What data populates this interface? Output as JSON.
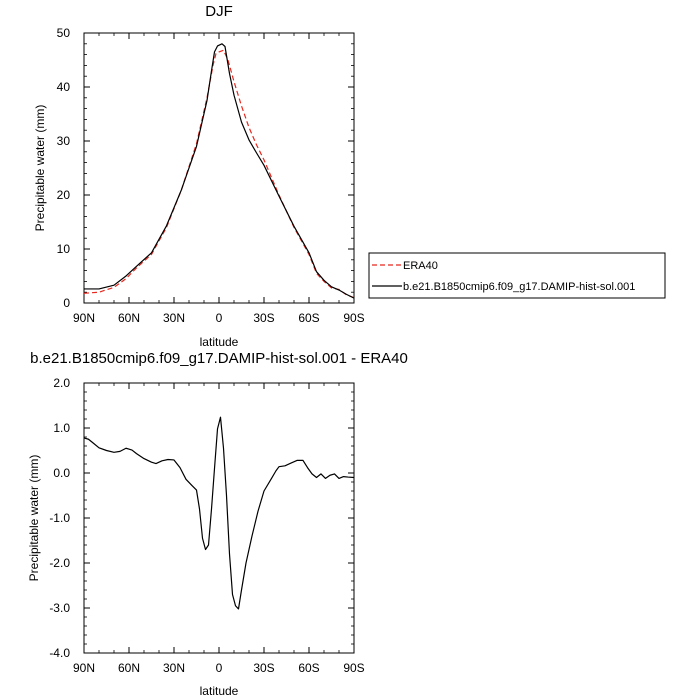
{
  "chart_data": [
    {
      "type": "line",
      "title": "DJF",
      "xlabel": "latitude",
      "ylabel": "Precipitable water (mm)",
      "x_ticks": [
        {
          "value": 90,
          "label": "90N"
        },
        {
          "value": 60,
          "label": "60N"
        },
        {
          "value": 30,
          "label": "30N"
        },
        {
          "value": 0,
          "label": "0"
        },
        {
          "value": -30,
          "label": "30S"
        },
        {
          "value": -60,
          "label": "60S"
        },
        {
          "value": -90,
          "label": "90S"
        }
      ],
      "y_ticks": [
        {
          "value": 0,
          "label": "0"
        },
        {
          "value": 10,
          "label": "10"
        },
        {
          "value": 20,
          "label": "20"
        },
        {
          "value": 30,
          "label": "30"
        },
        {
          "value": 40,
          "label": "40"
        },
        {
          "value": 50,
          "label": "50"
        }
      ],
      "xlim": [
        90,
        -90
      ],
      "ylim": [
        0,
        50
      ],
      "legend": "right",
      "series": [
        {
          "name": "ERA40",
          "color": "#e8281e",
          "dash": "dashed",
          "points": [
            [
              90,
              1.8
            ],
            [
              80,
              2.0
            ],
            [
              70,
              2.9
            ],
            [
              62,
              4.5
            ],
            [
              55,
              6.5
            ],
            [
              45,
              9.0
            ],
            [
              35,
              14.0
            ],
            [
              25,
              21.0
            ],
            [
              15,
              29.5
            ],
            [
              8,
              38.0
            ],
            [
              4,
              44.0
            ],
            [
              2,
              46.2
            ],
            [
              0,
              46.5
            ],
            [
              -3,
              46.8
            ],
            [
              -6,
              45.0
            ],
            [
              -10,
              41.0
            ],
            [
              -15,
              36.5
            ],
            [
              -20,
              32.5
            ],
            [
              -25,
              29.3
            ],
            [
              -30,
              26.5
            ],
            [
              -40,
              20.0
            ],
            [
              -50,
              14.0
            ],
            [
              -60,
              9.0
            ],
            [
              -65,
              5.5
            ],
            [
              -70,
              4.0
            ],
            [
              -75,
              2.8
            ],
            [
              -80,
              2.5
            ],
            [
              -85,
              1.5
            ],
            [
              -90,
              1.0
            ]
          ]
        },
        {
          "name": "b.e21.B1850cmip6.f09_g17.DAMIP-hist-sol.001",
          "color": "#000000",
          "dash": "solid",
          "points": [
            [
              90,
              2.6
            ],
            [
              80,
              2.6
            ],
            [
              70,
              3.3
            ],
            [
              62,
              5.0
            ],
            [
              55,
              6.8
            ],
            [
              45,
              9.3
            ],
            [
              35,
              14.3
            ],
            [
              25,
              21.0
            ],
            [
              15,
              29.0
            ],
            [
              8,
              37.5
            ],
            [
              5,
              43.0
            ],
            [
              3,
              46.5
            ],
            [
              1,
              47.6
            ],
            [
              -2,
              48.0
            ],
            [
              -4,
              47.5
            ],
            [
              -7,
              42.5
            ],
            [
              -10,
              38.5
            ],
            [
              -15,
              33.5
            ],
            [
              -20,
              30.2
            ],
            [
              -25,
              27.8
            ],
            [
              -30,
              25.5
            ],
            [
              -40,
              19.8
            ],
            [
              -50,
              14.2
            ],
            [
              -60,
              9.3
            ],
            [
              -65,
              5.8
            ],
            [
              -70,
              4.2
            ],
            [
              -75,
              3.0
            ],
            [
              -80,
              2.4
            ],
            [
              -85,
              1.6
            ],
            [
              -90,
              0.9
            ]
          ]
        }
      ]
    },
    {
      "type": "line",
      "title": "b.e21.B1850cmip6.f09_g17.DAMIP-hist-sol.001 - ERA40",
      "xlabel": "latitude",
      "ylabel": "Precipitable water (mm)",
      "x_ticks": [
        {
          "value": 90,
          "label": "90N"
        },
        {
          "value": 60,
          "label": "60N"
        },
        {
          "value": 30,
          "label": "30N"
        },
        {
          "value": 0,
          "label": "0"
        },
        {
          "value": -30,
          "label": "30S"
        },
        {
          "value": -60,
          "label": "60S"
        },
        {
          "value": -90,
          "label": "90S"
        }
      ],
      "y_ticks": [
        {
          "value": -4,
          "label": "-4.0"
        },
        {
          "value": -3,
          "label": "-3.0"
        },
        {
          "value": -2,
          "label": "-2.0"
        },
        {
          "value": -1,
          "label": "-1.0"
        },
        {
          "value": 0,
          "label": "0.0"
        },
        {
          "value": 1,
          "label": "1.0"
        },
        {
          "value": 2,
          "label": "2.0"
        }
      ],
      "xlim": [
        90,
        -90
      ],
      "ylim": [
        -4,
        2
      ],
      "series": [
        {
          "color": "#000000",
          "dash": "solid",
          "points": [
            [
              90,
              0.78
            ],
            [
              87,
              0.75
            ],
            [
              84,
              0.67
            ],
            [
              80,
              0.56
            ],
            [
              75,
              0.5
            ],
            [
              70,
              0.46
            ],
            [
              66,
              0.48
            ],
            [
              62,
              0.55
            ],
            [
              58,
              0.51
            ],
            [
              55,
              0.43
            ],
            [
              50,
              0.32
            ],
            [
              45,
              0.24
            ],
            [
              42,
              0.21
            ],
            [
              38,
              0.27
            ],
            [
              34,
              0.3
            ],
            [
              30,
              0.29
            ],
            [
              26,
              0.12
            ],
            [
              22,
              -0.14
            ],
            [
              18,
              -0.28
            ],
            [
              15,
              -0.38
            ],
            [
              13,
              -0.8
            ],
            [
              11,
              -1.45
            ],
            [
              9,
              -1.7
            ],
            [
              7,
              -1.6
            ],
            [
              5,
              -0.8
            ],
            [
              3,
              0.1
            ],
            [
              1,
              0.98
            ],
            [
              -1,
              1.24
            ],
            [
              -3,
              0.55
            ],
            [
              -5,
              -0.5
            ],
            [
              -7,
              -1.8
            ],
            [
              -9,
              -2.7
            ],
            [
              -11,
              -2.95
            ],
            [
              -13,
              -3.02
            ],
            [
              -15,
              -2.6
            ],
            [
              -18,
              -2.0
            ],
            [
              -22,
              -1.4
            ],
            [
              -26,
              -0.85
            ],
            [
              -30,
              -0.4
            ],
            [
              -35,
              -0.12
            ],
            [
              -38,
              0.05
            ],
            [
              -40,
              0.14
            ],
            [
              -44,
              0.16
            ],
            [
              -48,
              0.22
            ],
            [
              -52,
              0.28
            ],
            [
              -56,
              0.28
            ],
            [
              -59,
              0.12
            ],
            [
              -62,
              -0.02
            ],
            [
              -65,
              -0.1
            ],
            [
              -68,
              -0.02
            ],
            [
              -71,
              -0.12
            ],
            [
              -74,
              -0.05
            ],
            [
              -77,
              -0.02
            ],
            [
              -80,
              -0.12
            ],
            [
              -83,
              -0.08
            ],
            [
              -86,
              -0.09
            ],
            [
              -90,
              -0.1
            ]
          ]
        }
      ]
    }
  ]
}
